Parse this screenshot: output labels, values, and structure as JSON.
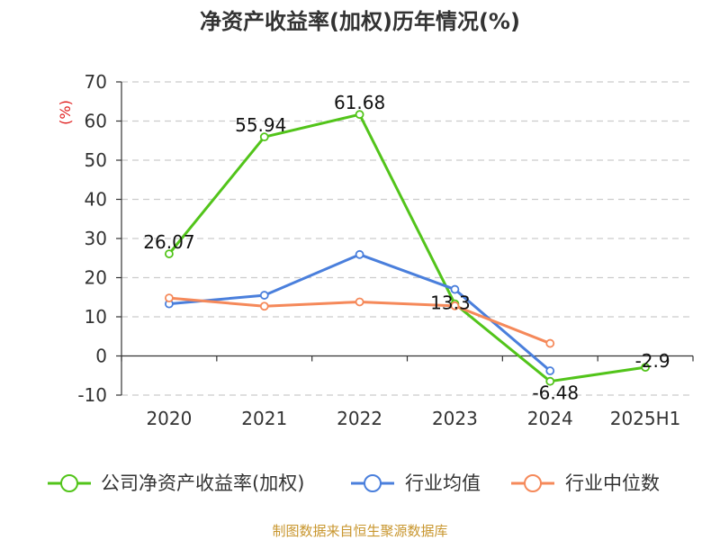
{
  "chart_data": {
    "type": "line",
    "title": "净资产收益率(加权)历年情况(%)",
    "ylabel": "(%)",
    "xlabel": "",
    "categories": [
      "2020",
      "2021",
      "2022",
      "2023",
      "2024",
      "2025H1"
    ],
    "ylim": [
      -10,
      70
    ],
    "yticks": [
      -10,
      0,
      10,
      20,
      30,
      40,
      50,
      60,
      70
    ],
    "grid": true,
    "legend_position": "bottom",
    "series": [
      {
        "name": "公司净资产收益率(加权)",
        "color": "#52c41a",
        "values": [
          26.07,
          55.94,
          61.68,
          13.3,
          -6.48,
          -2.9
        ],
        "labels": [
          "26.07",
          "55.94",
          "61.68",
          "13.3",
          "-6.48",
          "-2.9"
        ]
      },
      {
        "name": "行业均值",
        "color": "#4a7fdc",
        "values": [
          13.3,
          15.5,
          25.9,
          17.0,
          -3.8,
          null
        ]
      },
      {
        "name": "行业中位数",
        "color": "#f5895a",
        "values": [
          14.8,
          12.7,
          13.8,
          12.8,
          3.2,
          null
        ]
      }
    ]
  },
  "source": "制图数据来自恒生聚源数据库"
}
